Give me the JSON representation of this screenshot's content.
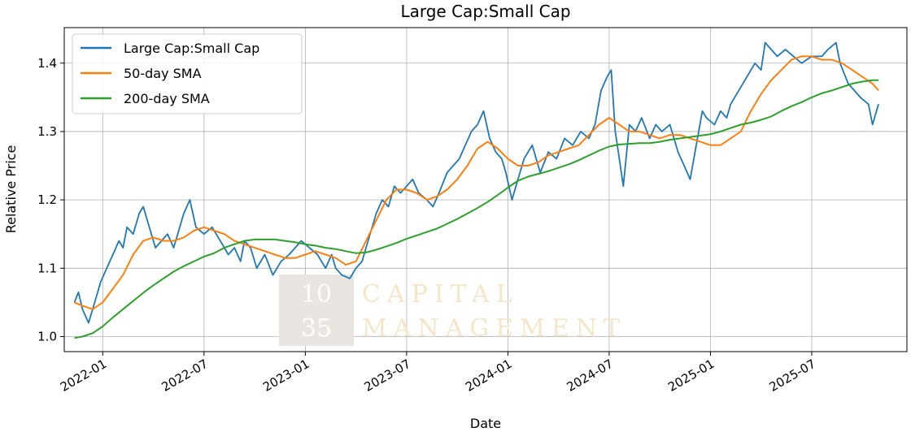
{
  "colors": {
    "large_small": "#1f77b4",
    "sma50": "#ff7f0e",
    "sma200": "#2ca02c",
    "grid": "#b0b0b0"
  },
  "watermark": {
    "line1_num": "10",
    "line2_num": "35",
    "line1_text": "CAPITAL",
    "line2_text": "MANAGEMENT"
  },
  "chart_data": {
    "type": "line",
    "title": "Large Cap:Small Cap",
    "xlabel": "Date",
    "ylabel": "Relative Price",
    "xlim": [
      2021.81,
      2025.97
    ],
    "ylim": [
      0.978,
      1.452
    ],
    "grid": true,
    "legend_position": "top-left",
    "x_ticks": [
      {
        "x": 2022.0,
        "label": "2022-01"
      },
      {
        "x": 2022.5,
        "label": "2022-07"
      },
      {
        "x": 2023.0,
        "label": "2023-01"
      },
      {
        "x": 2023.5,
        "label": "2023-07"
      },
      {
        "x": 2024.0,
        "label": "2024-01"
      },
      {
        "x": 2024.5,
        "label": "2024-07"
      },
      {
        "x": 2025.0,
        "label": "2025-01"
      },
      {
        "x": 2025.5,
        "label": "2025-07"
      }
    ],
    "y_ticks": [
      {
        "y": 1.0,
        "label": "1.0"
      },
      {
        "y": 1.1,
        "label": "1.1"
      },
      {
        "y": 1.2,
        "label": "1.2"
      },
      {
        "y": 1.3,
        "label": "1.3"
      },
      {
        "y": 1.4,
        "label": "1.4"
      }
    ],
    "series": [
      {
        "name": "Large Cap:Small Cap",
        "x": [
          2021.86,
          2021.88,
          2021.9,
          2021.93,
          2021.96,
          2021.99,
          2022.02,
          2022.05,
          2022.08,
          2022.1,
          2022.12,
          2022.15,
          2022.18,
          2022.2,
          2022.23,
          2022.26,
          2022.29,
          2022.32,
          2022.35,
          2022.38,
          2022.4,
          2022.43,
          2022.46,
          2022.5,
          2022.54,
          2022.58,
          2022.62,
          2022.65,
          2022.68,
          2022.7,
          2022.73,
          2022.76,
          2022.8,
          2022.84,
          2022.88,
          2022.92,
          2022.95,
          2022.98,
          2023.02,
          2023.06,
          2023.1,
          2023.13,
          2023.15,
          2023.18,
          2023.22,
          2023.25,
          2023.28,
          2023.32,
          2023.35,
          2023.38,
          2023.41,
          2023.44,
          2023.47,
          2023.5,
          2023.53,
          2023.56,
          2023.6,
          2023.63,
          2023.66,
          2023.7,
          2023.73,
          2023.76,
          2023.79,
          2023.82,
          2023.85,
          2023.88,
          2023.91,
          2023.94,
          2023.97,
          2023.99,
          2024.02,
          2024.05,
          2024.08,
          2024.12,
          2024.16,
          2024.2,
          2024.24,
          2024.28,
          2024.32,
          2024.36,
          2024.4,
          2024.43,
          2024.46,
          2024.49,
          2024.51,
          2024.53,
          2024.55,
          2024.57,
          2024.6,
          2024.63,
          2024.66,
          2024.7,
          2024.73,
          2024.76,
          2024.8,
          2024.84,
          2024.87,
          2024.9,
          2024.93,
          2024.96,
          2024.98,
          2025.02,
          2025.05,
          2025.08,
          2025.1,
          2025.14,
          2025.18,
          2025.22,
          2025.25,
          2025.27,
          2025.3,
          2025.33,
          2025.37,
          2025.41,
          2025.45,
          2025.5,
          2025.55,
          2025.58,
          2025.62,
          2025.64,
          2025.68,
          2025.71,
          2025.74,
          2025.78,
          2025.8,
          2025.83
        ],
        "y": [
          1.05,
          1.065,
          1.04,
          1.02,
          1.05,
          1.08,
          1.1,
          1.12,
          1.14,
          1.13,
          1.16,
          1.15,
          1.18,
          1.19,
          1.16,
          1.13,
          1.14,
          1.15,
          1.13,
          1.16,
          1.18,
          1.2,
          1.16,
          1.15,
          1.16,
          1.14,
          1.12,
          1.13,
          1.11,
          1.14,
          1.13,
          1.1,
          1.12,
          1.09,
          1.11,
          1.12,
          1.13,
          1.14,
          1.13,
          1.12,
          1.1,
          1.12,
          1.1,
          1.09,
          1.085,
          1.1,
          1.11,
          1.15,
          1.18,
          1.2,
          1.19,
          1.22,
          1.21,
          1.22,
          1.23,
          1.21,
          1.2,
          1.19,
          1.21,
          1.24,
          1.25,
          1.26,
          1.28,
          1.3,
          1.31,
          1.33,
          1.29,
          1.27,
          1.26,
          1.24,
          1.2,
          1.23,
          1.26,
          1.28,
          1.24,
          1.27,
          1.26,
          1.29,
          1.28,
          1.3,
          1.29,
          1.31,
          1.36,
          1.38,
          1.39,
          1.3,
          1.26,
          1.22,
          1.31,
          1.3,
          1.32,
          1.29,
          1.31,
          1.3,
          1.31,
          1.27,
          1.25,
          1.23,
          1.28,
          1.33,
          1.32,
          1.31,
          1.33,
          1.32,
          1.34,
          1.36,
          1.38,
          1.4,
          1.39,
          1.43,
          1.42,
          1.41,
          1.42,
          1.41,
          1.4,
          1.41,
          1.41,
          1.42,
          1.43,
          1.4,
          1.37,
          1.36,
          1.35,
          1.34,
          1.31,
          1.34
        ]
      },
      {
        "name": "50-day SMA",
        "x": [
          2021.86,
          2021.9,
          2021.95,
          2022.0,
          2022.05,
          2022.1,
          2022.15,
          2022.2,
          2022.25,
          2022.3,
          2022.35,
          2022.4,
          2022.45,
          2022.5,
          2022.55,
          2022.6,
          2022.65,
          2022.7,
          2022.75,
          2022.8,
          2022.85,
          2022.9,
          2022.95,
          2023.0,
          2023.05,
          2023.1,
          2023.15,
          2023.2,
          2023.25,
          2023.3,
          2023.35,
          2023.4,
          2023.45,
          2023.5,
          2023.55,
          2023.6,
          2023.65,
          2023.7,
          2023.75,
          2023.8,
          2023.85,
          2023.9,
          2023.95,
          2024.0,
          2024.05,
          2024.1,
          2024.15,
          2024.2,
          2024.25,
          2024.3,
          2024.35,
          2024.4,
          2024.45,
          2024.5,
          2024.55,
          2024.6,
          2024.65,
          2024.7,
          2024.75,
          2024.8,
          2024.85,
          2024.9,
          2024.95,
          2025.0,
          2025.05,
          2025.1,
          2025.15,
          2025.2,
          2025.25,
          2025.3,
          2025.35,
          2025.4,
          2025.45,
          2025.5,
          2025.55,
          2025.6,
          2025.65,
          2025.7,
          2025.75,
          2025.8,
          2025.83
        ],
        "y": [
          1.05,
          1.045,
          1.04,
          1.05,
          1.07,
          1.09,
          1.12,
          1.14,
          1.145,
          1.14,
          1.14,
          1.145,
          1.155,
          1.16,
          1.155,
          1.15,
          1.14,
          1.135,
          1.13,
          1.125,
          1.12,
          1.115,
          1.115,
          1.12,
          1.125,
          1.12,
          1.115,
          1.105,
          1.11,
          1.14,
          1.17,
          1.2,
          1.215,
          1.215,
          1.21,
          1.2,
          1.205,
          1.215,
          1.23,
          1.25,
          1.275,
          1.285,
          1.275,
          1.26,
          1.25,
          1.25,
          1.255,
          1.265,
          1.27,
          1.275,
          1.28,
          1.295,
          1.31,
          1.32,
          1.31,
          1.3,
          1.3,
          1.295,
          1.29,
          1.295,
          1.295,
          1.29,
          1.285,
          1.28,
          1.28,
          1.29,
          1.3,
          1.33,
          1.355,
          1.375,
          1.39,
          1.405,
          1.41,
          1.41,
          1.405,
          1.405,
          1.4,
          1.39,
          1.38,
          1.37,
          1.36
        ]
      },
      {
        "name": "200-day SMA",
        "x": [
          2021.86,
          2021.9,
          2021.95,
          2022.0,
          2022.05,
          2022.1,
          2022.15,
          2022.2,
          2022.25,
          2022.3,
          2022.35,
          2022.4,
          2022.45,
          2022.5,
          2022.55,
          2022.6,
          2022.65,
          2022.7,
          2022.75,
          2022.8,
          2022.85,
          2022.9,
          2022.95,
          2023.0,
          2023.05,
          2023.1,
          2023.15,
          2023.2,
          2023.25,
          2023.3,
          2023.35,
          2023.4,
          2023.45,
          2023.5,
          2023.55,
          2023.6,
          2023.65,
          2023.7,
          2023.75,
          2023.8,
          2023.85,
          2023.9,
          2023.95,
          2024.0,
          2024.05,
          2024.1,
          2024.15,
          2024.2,
          2024.25,
          2024.3,
          2024.35,
          2024.4,
          2024.45,
          2024.5,
          2024.55,
          2024.6,
          2024.65,
          2024.7,
          2024.75,
          2024.8,
          2024.85,
          2024.9,
          2024.95,
          2025.0,
          2025.05,
          2025.1,
          2025.15,
          2025.2,
          2025.25,
          2025.3,
          2025.35,
          2025.4,
          2025.45,
          2025.5,
          2025.55,
          2025.6,
          2025.65,
          2025.7,
          2025.75,
          2025.8,
          2025.83
        ],
        "y": [
          0.998,
          1.0,
          1.005,
          1.015,
          1.028,
          1.04,
          1.052,
          1.064,
          1.075,
          1.085,
          1.095,
          1.103,
          1.11,
          1.117,
          1.122,
          1.13,
          1.135,
          1.14,
          1.142,
          1.142,
          1.142,
          1.14,
          1.138,
          1.135,
          1.133,
          1.13,
          1.128,
          1.125,
          1.122,
          1.123,
          1.127,
          1.132,
          1.137,
          1.143,
          1.148,
          1.153,
          1.158,
          1.165,
          1.172,
          1.18,
          1.188,
          1.197,
          1.207,
          1.218,
          1.228,
          1.234,
          1.238,
          1.242,
          1.247,
          1.252,
          1.258,
          1.265,
          1.272,
          1.278,
          1.281,
          1.282,
          1.283,
          1.283,
          1.285,
          1.288,
          1.29,
          1.292,
          1.294,
          1.296,
          1.3,
          1.305,
          1.31,
          1.313,
          1.317,
          1.322,
          1.33,
          1.337,
          1.343,
          1.35,
          1.356,
          1.36,
          1.365,
          1.37,
          1.373,
          1.375,
          1.375
        ]
      }
    ]
  }
}
